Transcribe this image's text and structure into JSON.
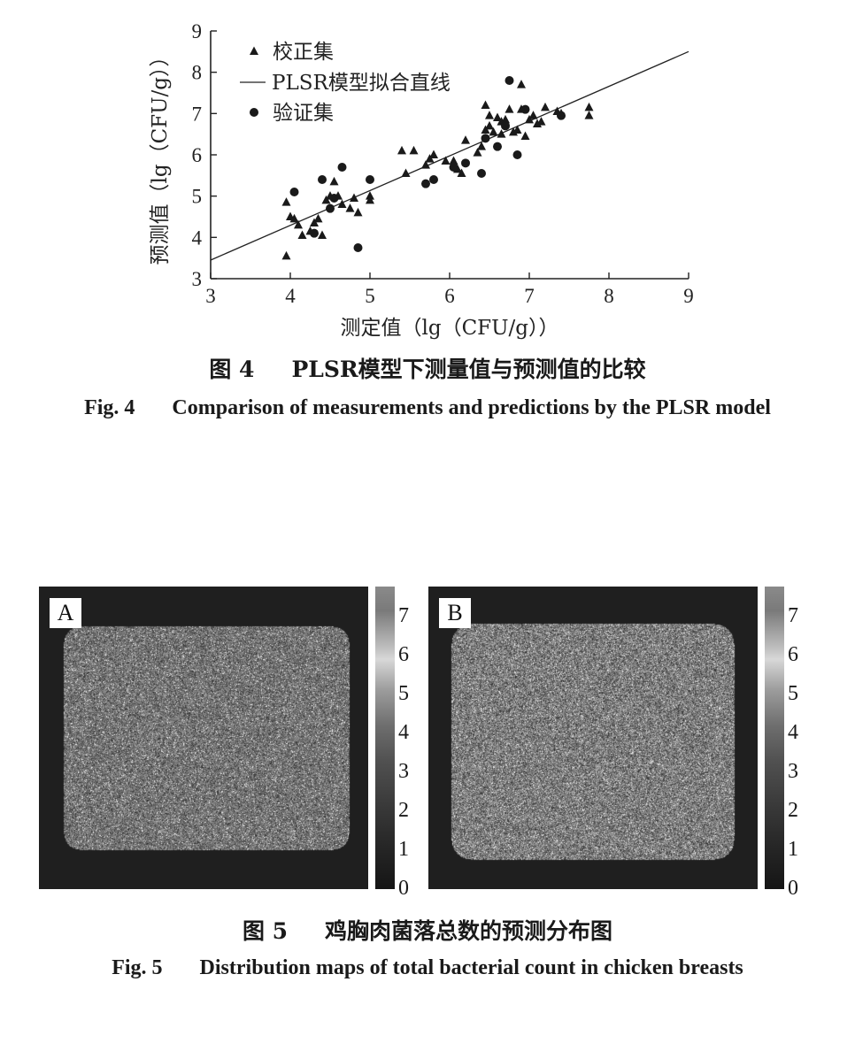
{
  "fig4": {
    "caption_cn": {
      "num": "图 4",
      "text": "PLSR模型下测量值与预测值的比较"
    },
    "caption_en": {
      "num": "Fig. 4",
      "text": "Comparison of measurements and predictions by the PLSR model"
    },
    "chart_data": {
      "type": "scatter",
      "xlabel": "测定值（lg（CFU/g））",
      "ylabel": "预测值（lg（CFU/g））",
      "xlim": [
        3,
        9
      ],
      "ylim": [
        3,
        9
      ],
      "xticks": [
        "3",
        "4",
        "5",
        "6",
        "7",
        "8",
        "9"
      ],
      "yticks": [
        "3",
        "4",
        "5",
        "6",
        "7",
        "8",
        "9"
      ],
      "legend_position": "top-left",
      "grid": false,
      "series": [
        {
          "name": "校正集",
          "marker": "triangle",
          "points": [
            [
              3.95,
              4.85
            ],
            [
              4.0,
              4.5
            ],
            [
              4.05,
              4.45
            ],
            [
              4.1,
              4.3
            ],
            [
              4.15,
              4.05
            ],
            [
              4.25,
              4.15
            ],
            [
              4.3,
              4.35
            ],
            [
              4.35,
              4.45
            ],
            [
              4.4,
              4.05
            ],
            [
              4.45,
              4.9
            ],
            [
              4.5,
              5.0
            ],
            [
              4.55,
              5.35
            ],
            [
              4.6,
              5.0
            ],
            [
              4.65,
              4.8
            ],
            [
              4.75,
              4.7
            ],
            [
              4.8,
              4.95
            ],
            [
              4.85,
              4.6
            ],
            [
              5.0,
              5.0
            ],
            [
              5.0,
              4.9
            ],
            [
              5.4,
              6.1
            ],
            [
              5.45,
              5.55
            ],
            [
              5.55,
              6.1
            ],
            [
              5.7,
              5.75
            ],
            [
              5.75,
              5.9
            ],
            [
              5.8,
              6.0
            ],
            [
              5.95,
              5.85
            ],
            [
              6.05,
              5.85
            ],
            [
              6.1,
              5.65
            ],
            [
              6.15,
              5.55
            ],
            [
              6.2,
              6.35
            ],
            [
              6.35,
              6.05
            ],
            [
              6.4,
              6.2
            ],
            [
              6.45,
              6.6
            ],
            [
              6.45,
              7.2
            ],
            [
              6.5,
              6.7
            ],
            [
              6.5,
              6.95
            ],
            [
              6.55,
              6.55
            ],
            [
              6.6,
              6.9
            ],
            [
              6.65,
              6.5
            ],
            [
              6.65,
              6.8
            ],
            [
              6.7,
              6.85
            ],
            [
              6.75,
              7.1
            ],
            [
              6.8,
              6.55
            ],
            [
              6.85,
              6.6
            ],
            [
              6.9,
              7.1
            ],
            [
              6.9,
              7.7
            ],
            [
              6.95,
              6.45
            ],
            [
              7.0,
              6.85
            ],
            [
              7.05,
              6.95
            ],
            [
              7.1,
              6.75
            ],
            [
              7.15,
              6.8
            ],
            [
              7.2,
              7.15
            ],
            [
              7.35,
              7.05
            ],
            [
              7.4,
              7.0
            ],
            [
              7.75,
              6.95
            ],
            [
              7.75,
              7.15
            ],
            [
              3.95,
              3.55
            ]
          ]
        },
        {
          "name": "PLSR模型拟合直线",
          "type": "line",
          "line": [
            [
              3,
              3.45
            ],
            [
              9,
              8.5
            ]
          ]
        },
        {
          "name": "验证集",
          "marker": "circle",
          "points": [
            [
              4.05,
              5.1
            ],
            [
              4.3,
              4.1
            ],
            [
              4.4,
              5.4
            ],
            [
              4.5,
              4.7
            ],
            [
              4.55,
              4.95
            ],
            [
              4.65,
              5.7
            ],
            [
              4.85,
              3.75
            ],
            [
              5.0,
              5.4
            ],
            [
              5.7,
              5.3
            ],
            [
              5.8,
              5.4
            ],
            [
              6.05,
              5.7
            ],
            [
              6.2,
              5.8
            ],
            [
              6.4,
              5.55
            ],
            [
              6.45,
              6.4
            ],
            [
              6.6,
              6.2
            ],
            [
              6.7,
              6.7
            ],
            [
              6.75,
              7.8
            ],
            [
              6.85,
              6.0
            ],
            [
              6.95,
              7.1
            ],
            [
              7.4,
              6.95
            ]
          ]
        }
      ]
    }
  },
  "fig5": {
    "caption_cn": {
      "num": "图 5",
      "text": "鸡胸肉菌落总数的预测分布图"
    },
    "caption_en": {
      "num": "Fig. 5",
      "text": "Distribution maps of total bacterial count in chicken breasts"
    },
    "panels": [
      {
        "label": "A",
        "noise_level": 0.42
      },
      {
        "label": "B",
        "noise_level": 0.5
      }
    ],
    "colorbar_ticks": [
      "7",
      "6",
      "5",
      "4",
      "3",
      "2",
      "1",
      "0"
    ]
  }
}
